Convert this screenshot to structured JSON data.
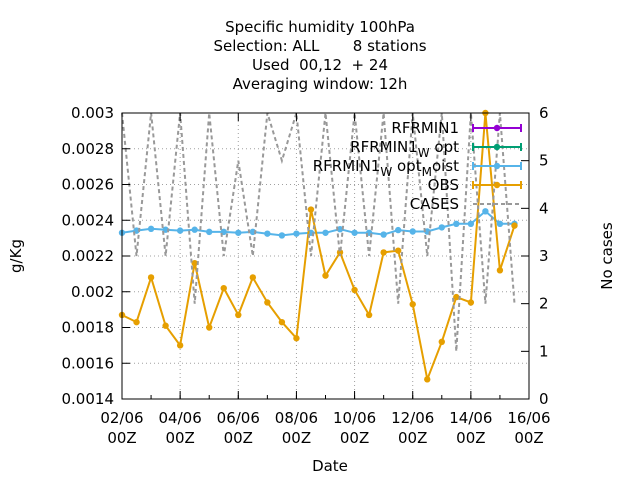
{
  "chart_data": {
    "type": "line",
    "title_lines": [
      "Specific humidity 100hPa",
      "Selection: ALL       8 stations",
      "Used  00,12  + 24",
      "Averaging window: 12h"
    ],
    "xlabel": "Date",
    "ylabel": "g/Kg",
    "y2label": "No cases",
    "x_range": [
      "2023-06-02T00:00",
      "2023-06-16T00:00"
    ],
    "x_tick_labels": [
      {
        "date": "02/06",
        "hour": "00Z"
      },
      {
        "date": "04/06",
        "hour": "00Z"
      },
      {
        "date": "06/06",
        "hour": "00Z"
      },
      {
        "date": "08/06",
        "hour": "00Z"
      },
      {
        "date": "10/06",
        "hour": "00Z"
      },
      {
        "date": "12/06",
        "hour": "00Z"
      },
      {
        "date": "14/06",
        "hour": "00Z"
      },
      {
        "date": "16/06",
        "hour": "00Z"
      }
    ],
    "ylim": [
      0.0014,
      0.003
    ],
    "y_tick_labels": [
      "0.0014",
      "0.0016",
      "0.0018",
      "0.002",
      "0.0022",
      "0.0024",
      "0.0026",
      "0.0028",
      "0.003"
    ],
    "y2lim": [
      0,
      6
    ],
    "y2_tick_labels": [
      "0",
      "1",
      "2",
      "3",
      "4",
      "5",
      "6"
    ],
    "grid": true,
    "legend_position": "top-right",
    "colors": {
      "RFRMIN1": "#9400d3",
      "RFRMIN1_W_opt": "#009e73",
      "RFRMIN1_W_opt_M_oist": "#56b4e9",
      "OBS": "#e69f00",
      "CASES": "#999999"
    },
    "series": [
      {
        "name": "RFRMIN1",
        "legend_base": "RFRMIN1",
        "legend_sub": "",
        "legend_tail": "",
        "legend_sub2": "",
        "legend_tail2": "",
        "axis": "y",
        "values": []
      },
      {
        "name": "RFRMIN1 W opt",
        "legend_base": "RFRMIN1",
        "legend_sub": "W",
        "legend_tail": " opt",
        "legend_sub2": "",
        "legend_tail2": "",
        "axis": "y",
        "values": []
      },
      {
        "name": "RFRMIN1 W opt M oist",
        "legend_base": "RFRMIN1",
        "legend_sub": "W",
        "legend_tail": " opt",
        "legend_sub2": "M",
        "legend_tail2": "oist",
        "axis": "y",
        "x": [
          "2023-06-02T00:00",
          "2023-06-02T12:00",
          "2023-06-03T00:00",
          "2023-06-03T12:00",
          "2023-06-04T00:00",
          "2023-06-04T12:00",
          "2023-06-05T00:00",
          "2023-06-05T12:00",
          "2023-06-06T00:00",
          "2023-06-06T12:00",
          "2023-06-07T00:00",
          "2023-06-07T12:00",
          "2023-06-08T00:00",
          "2023-06-08T12:00",
          "2023-06-09T00:00",
          "2023-06-09T12:00",
          "2023-06-10T00:00",
          "2023-06-10T12:00",
          "2023-06-11T00:00",
          "2023-06-11T12:00",
          "2023-06-12T00:00",
          "2023-06-12T12:00",
          "2023-06-13T00:00",
          "2023-06-13T12:00",
          "2023-06-14T00:00",
          "2023-06-14T12:00",
          "2023-06-15T00:00",
          "2023-06-15T12:00"
        ],
        "values": [
          0.00233,
          0.002342,
          0.002352,
          0.002347,
          0.002342,
          0.002347,
          0.002335,
          0.002335,
          0.00233,
          0.002335,
          0.002325,
          0.002315,
          0.002325,
          0.00233,
          0.00233,
          0.00235,
          0.00233,
          0.00233,
          0.00232,
          0.002345,
          0.002337,
          0.002337,
          0.00236,
          0.00238,
          0.00238,
          0.00245,
          0.00238,
          0.00238
        ]
      },
      {
        "name": "OBS",
        "legend_base": "OBS",
        "legend_sub": "",
        "legend_tail": "",
        "legend_sub2": "",
        "legend_tail2": "",
        "axis": "y",
        "x": [
          "2023-06-02T00:00",
          "2023-06-02T12:00",
          "2023-06-03T00:00",
          "2023-06-03T12:00",
          "2023-06-04T00:00",
          "2023-06-04T12:00",
          "2023-06-05T00:00",
          "2023-06-05T12:00",
          "2023-06-06T00:00",
          "2023-06-06T12:00",
          "2023-06-07T00:00",
          "2023-06-07T12:00",
          "2023-06-08T00:00",
          "2023-06-08T12:00",
          "2023-06-09T00:00",
          "2023-06-09T12:00",
          "2023-06-10T00:00",
          "2023-06-10T12:00",
          "2023-06-11T00:00",
          "2023-06-11T12:00",
          "2023-06-12T00:00",
          "2023-06-12T12:00",
          "2023-06-13T00:00",
          "2023-06-13T12:00",
          "2023-06-14T00:00",
          "2023-06-14T12:00",
          "2023-06-15T00:00",
          "2023-06-15T12:00"
        ],
        "values": [
          0.00187,
          0.00183,
          0.00208,
          0.00181,
          0.0017,
          0.00216,
          0.0018,
          0.00202,
          0.00187,
          0.00208,
          0.00194,
          0.00183,
          0.00174,
          0.00246,
          0.00209,
          0.00222,
          0.00201,
          0.00187,
          0.00222,
          0.00223,
          0.00193,
          0.00151,
          0.00172,
          0.00197,
          0.00194,
          0.003,
          0.00212,
          0.00237
        ]
      },
      {
        "name": "CASES",
        "legend_base": "CASES",
        "legend_sub": "",
        "legend_tail": "",
        "legend_sub2": "",
        "legend_tail2": "",
        "axis": "y2",
        "x": [
          "2023-06-02T00:00",
          "2023-06-02T12:00",
          "2023-06-03T00:00",
          "2023-06-03T12:00",
          "2023-06-04T00:00",
          "2023-06-04T12:00",
          "2023-06-05T00:00",
          "2023-06-05T12:00",
          "2023-06-06T00:00",
          "2023-06-06T12:00",
          "2023-06-07T00:00",
          "2023-06-07T12:00",
          "2023-06-08T00:00",
          "2023-06-08T12:00",
          "2023-06-09T00:00",
          "2023-06-09T12:00",
          "2023-06-10T00:00",
          "2023-06-10T12:00",
          "2023-06-11T00:00",
          "2023-06-11T12:00",
          "2023-06-12T00:00",
          "2023-06-12T12:00",
          "2023-06-13T00:00",
          "2023-06-13T12:00",
          "2023-06-14T00:00",
          "2023-06-14T12:00",
          "2023-06-15T00:00",
          "2023-06-15T12:00"
        ],
        "values": [
          6,
          3,
          6,
          3,
          6,
          2,
          6,
          3,
          5,
          3,
          6,
          5,
          6,
          3,
          6,
          3,
          6,
          3,
          6,
          2,
          6,
          3,
          6,
          1,
          6,
          2,
          6,
          2
        ]
      }
    ]
  }
}
